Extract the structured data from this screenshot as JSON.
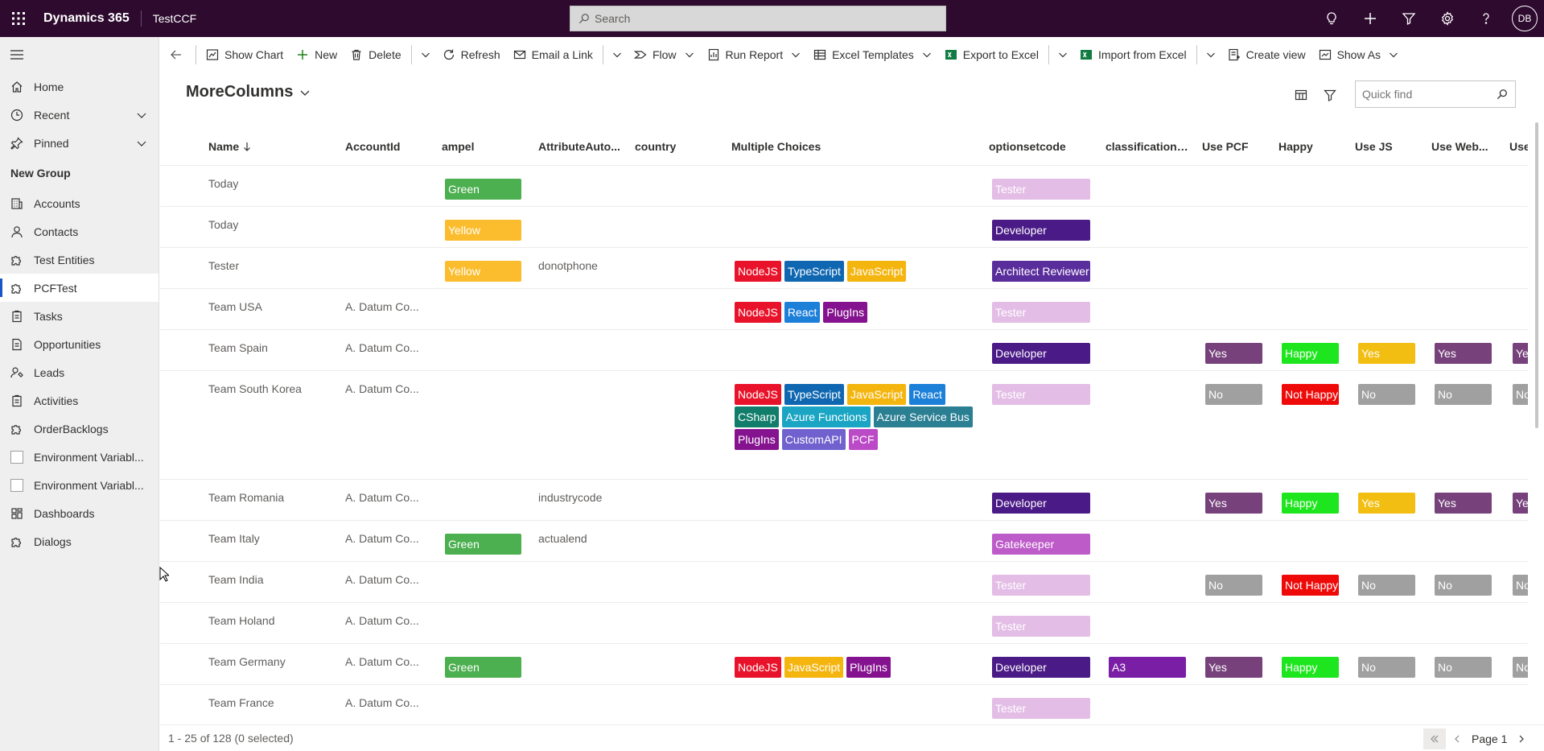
{
  "topbar": {
    "app_name": "Dynamics 365",
    "environment": "TestCCF",
    "search_placeholder": "Search",
    "avatar_initials": "DB",
    "bg_color": "#2d0a2e"
  },
  "sidebar": {
    "top_items": [
      {
        "label": "Home",
        "icon": "home-icon"
      },
      {
        "label": "Recent",
        "icon": "clock-icon",
        "expandable": true
      },
      {
        "label": "Pinned",
        "icon": "pin-icon",
        "expandable": true
      }
    ],
    "group_title": "New Group",
    "items": [
      {
        "label": "Accounts",
        "icon": "building-icon"
      },
      {
        "label": "Contacts",
        "icon": "person-icon"
      },
      {
        "label": "Test Entities",
        "icon": "puzzle-icon"
      },
      {
        "label": "PCFTest",
        "icon": "puzzle-icon",
        "selected": true
      },
      {
        "label": "Tasks",
        "icon": "clipboard-icon"
      },
      {
        "label": "Opportunities",
        "icon": "document-icon"
      },
      {
        "label": "Leads",
        "icon": "phone-person-icon"
      },
      {
        "label": "Activities",
        "icon": "clipboard-icon"
      },
      {
        "label": "OrderBacklogs",
        "icon": "puzzle-icon"
      },
      {
        "label": "Environment Variabl...",
        "icon": "broken-image-icon"
      },
      {
        "label": "Environment Variabl...",
        "icon": "broken-image-icon"
      },
      {
        "label": "Dashboards",
        "icon": "dashboard-icon"
      },
      {
        "label": "Dialogs",
        "icon": "puzzle-icon"
      }
    ]
  },
  "commandbar": {
    "show_chart": "Show Chart",
    "new": "New",
    "delete": "Delete",
    "refresh": "Refresh",
    "email_link": "Email a Link",
    "flow": "Flow",
    "run_report": "Run Report",
    "excel_templates": "Excel Templates",
    "export_excel": "Export to Excel",
    "import_excel": "Import from Excel",
    "create_view": "Create view",
    "show_as": "Show As"
  },
  "view": {
    "title": "MoreColumns",
    "quickfind_placeholder": "Quick find"
  },
  "grid": {
    "columns": [
      "Name",
      "AccountId",
      "ampel",
      "AttributeAuto...",
      "country",
      "Multiple Choices",
      "optionsetcode",
      "classificationc...",
      "Use PCF",
      "Happy",
      "Use JS",
      "Use Web...",
      "Use"
    ],
    "rows": [
      {
        "name": "Today",
        "account": "",
        "ampel": "Green",
        "attr": "",
        "choices": [],
        "optionset": "Tester",
        "classification": "",
        "pcf": "",
        "happy": "",
        "js": "",
        "web": "",
        "use": ""
      },
      {
        "name": "Today",
        "account": "",
        "ampel": "Yellow",
        "attr": "",
        "choices": [],
        "optionset": "Developer",
        "classification": "",
        "pcf": "",
        "happy": "",
        "js": "",
        "web": "",
        "use": ""
      },
      {
        "name": "Tester",
        "account": "",
        "ampel": "Yellow",
        "attr": "donotphone",
        "choices": [
          "NodeJS",
          "TypeScript",
          "JavaScript"
        ],
        "optionset": "Architect Reviewer",
        "classification": "",
        "pcf": "",
        "happy": "",
        "js": "",
        "web": "",
        "use": ""
      },
      {
        "name": "Team USA",
        "account": "A. Datum Co...",
        "ampel": "",
        "attr": "",
        "choices": [
          "NodeJS",
          "React",
          "PlugIns"
        ],
        "optionset": "Tester",
        "classification": "",
        "pcf": "",
        "happy": "",
        "js": "",
        "web": "",
        "use": ""
      },
      {
        "name": "Team Spain",
        "account": "A. Datum Co...",
        "ampel": "",
        "attr": "",
        "choices": [],
        "optionset": "Developer",
        "classification": "",
        "pcf": "Yes",
        "happy": "Happy",
        "js": "Yes",
        "web": "Yes",
        "use": "Yes"
      },
      {
        "name": "Team South Korea",
        "account": "A. Datum Co...",
        "ampel": "",
        "attr": "",
        "choices": [
          "NodeJS",
          "TypeScript",
          "JavaScript",
          "React",
          "CSharp",
          "Azure Functions",
          "Azure Service Bus",
          "PlugIns",
          "CustomAPI",
          "PCF"
        ],
        "optionset": "Tester",
        "classification": "",
        "pcf": "No",
        "happy": "Not Happy",
        "js": "No",
        "web": "No",
        "use": "No"
      },
      {
        "name": "Team Romania",
        "account": "A. Datum Co...",
        "ampel": "",
        "attr": "industrycode",
        "choices": [],
        "optionset": "Developer",
        "classification": "",
        "pcf": "Yes",
        "happy": "Happy",
        "js": "Yes",
        "web": "Yes",
        "use": "Yes"
      },
      {
        "name": "Team Italy",
        "account": "A. Datum Co...",
        "ampel": "Green",
        "attr": "actualend",
        "choices": [],
        "optionset": "Gatekeeper",
        "classification": "",
        "pcf": "",
        "happy": "",
        "js": "",
        "web": "",
        "use": ""
      },
      {
        "name": "Team India",
        "account": "A. Datum Co...",
        "ampel": "",
        "attr": "",
        "choices": [],
        "optionset": "Tester",
        "classification": "",
        "pcf": "No",
        "happy": "Not Happy",
        "js": "No",
        "web": "No",
        "use": "No"
      },
      {
        "name": "Team Holand",
        "account": "A. Datum Co...",
        "ampel": "",
        "attr": "",
        "choices": [],
        "optionset": "Tester",
        "classification": "",
        "pcf": "",
        "happy": "",
        "js": "",
        "web": "",
        "use": ""
      },
      {
        "name": "Team Germany",
        "account": "A. Datum Co...",
        "ampel": "Green",
        "attr": "",
        "choices": [
          "NodeJS",
          "JavaScript",
          "PlugIns"
        ],
        "optionset": "Developer",
        "classification": "A3",
        "pcf": "Yes",
        "happy": "Happy",
        "js": "No",
        "web": "No",
        "use": "No"
      },
      {
        "name": "Team France",
        "account": "A. Datum Co...",
        "ampel": "",
        "attr": "",
        "choices": [],
        "optionset": "Tester",
        "classification": "",
        "pcf": "",
        "happy": "",
        "js": "",
        "web": "",
        "use": ""
      }
    ]
  },
  "tag_colors": {
    "Green": "#4caf50",
    "Yellow": "#fbbd2e",
    "NodeJS": "#e8132a",
    "TypeScript": "#1067b1",
    "JavaScript": "#f5b50f",
    "React": "#1c80d9",
    "CSharp": "#117d6b",
    "Azure Functions": "#19a5c3",
    "Azure Service Bus": "#2a7f93",
    "PlugIns": "#85138f",
    "CustomAPI": "#6f62cf",
    "PCF": "#bb4ac6",
    "Tester": "#e3bde6",
    "Developer": "#4a1a86",
    "Architect Reviewer": "#5a2d9c",
    "Gatekeeper": "#bd5bc9",
    "A3": "#7a1fa5",
    "Yes_pcf": "#77427b",
    "Yes_js": "#f2be11",
    "Yes_web": "#77427b",
    "No": "#a0a0a0",
    "Happy": "#1ee61e",
    "Not Happy": "#ef0a0a"
  },
  "footer": {
    "count": "1 - 25 of 128 (0 selected)",
    "page": "Page 1"
  }
}
